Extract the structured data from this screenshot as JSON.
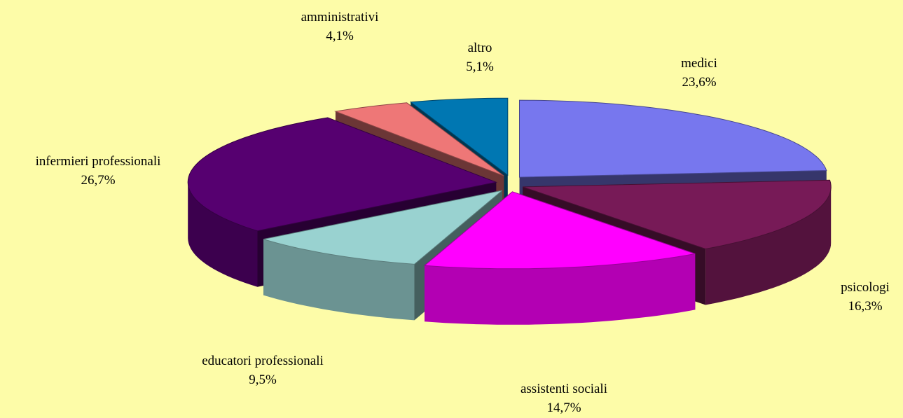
{
  "chart_data": {
    "type": "pie",
    "three_d": true,
    "exploded": true,
    "categories": [
      "medici",
      "psicologi",
      "assistenti sociali",
      "educatori professionali",
      "infermieri  professionali",
      "amministrativi",
      "altro"
    ],
    "values": [
      23.6,
      16.3,
      14.7,
      9.5,
      26.7,
      4.1,
      5.1
    ],
    "value_labels": [
      "23,6%",
      "16,3%",
      "14,7%",
      "9,5%",
      "26,7%",
      "4,1%",
      "5,1%"
    ],
    "colors": [
      "#7777ee",
      "#771a57",
      "#ff00ff",
      "#99d2d0",
      "#560070",
      "#ee7777",
      "#0077b2"
    ]
  }
}
